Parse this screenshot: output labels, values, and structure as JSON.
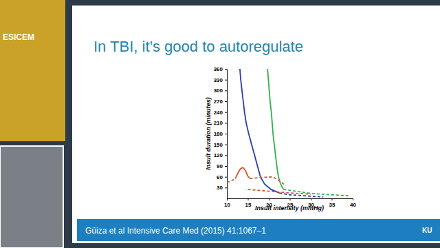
{
  "chart_data": {
    "type": "line",
    "title": "In TBI, it’s good to autoregulate",
    "annotations": [
      "Güiza et al Intensive Care Med (2015) 41:1067–1",
      "ESICEM",
      "KU"
    ],
    "x_label": "Insult intensity (mmHg)",
    "y_label": "Insult duration (minutes)",
    "xlim": [
      10,
      40
    ],
    "xticks": [
      10,
      15,
      20,
      25,
      30,
      35,
      40
    ],
    "ylim": [
      0,
      360
    ],
    "yticks": [
      30,
      60,
      90,
      120,
      150,
      180,
      210,
      240,
      270,
      300,
      330,
      360
    ],
    "grid": false,
    "series": [
      {
        "color": "#2a3bb5",
        "line_style": "solid",
        "x": [
          13.1,
          13.3,
          13.6,
          13.9,
          14.2,
          14.6,
          15.2,
          15.9,
          16.6,
          17.3,
          18,
          19,
          20.5,
          22.5
        ],
        "values": [
          360,
          330,
          300,
          270,
          240,
          210,
          180,
          150,
          120,
          90,
          60,
          40,
          25,
          15
        ]
      },
      {
        "color": "#2a3bb5",
        "line_style": "dashed",
        "x": [
          22.5,
          25,
          30,
          33
        ],
        "values": [
          15,
          10,
          6,
          4
        ]
      },
      {
        "color": "#2fb34a",
        "line_style": "solid",
        "x": [
          19.7,
          19.9,
          20.1,
          20.3,
          20.6,
          20.8,
          21,
          21.3,
          21.6,
          21.9,
          22.3,
          22.8,
          23.5
        ],
        "values": [
          360,
          330,
          300,
          270,
          240,
          210,
          180,
          150,
          120,
          90,
          60,
          40,
          25
        ]
      },
      {
        "color": "#2fb34a",
        "line_style": "dashed",
        "x": [
          23.5,
          30,
          35,
          39.5
        ],
        "values": [
          25,
          14,
          10,
          7
        ]
      },
      {
        "color": "#d9542c",
        "line_style": "solid",
        "x": [
          12,
          12.6,
          13.2,
          13.8,
          14.4,
          15,
          15.5
        ],
        "values": [
          55,
          70,
          82,
          86,
          78,
          62,
          55
        ]
      },
      {
        "color": "#d9542c",
        "line_style": "dashed",
        "x": [
          10,
          11,
          12
        ],
        "values": [
          45,
          48,
          55
        ]
      },
      {
        "color": "#d9542c",
        "line_style": "dashed",
        "x": [
          15.5,
          18,
          21,
          23,
          24
        ],
        "values": [
          55,
          58,
          60,
          45,
          35
        ]
      },
      {
        "color": "#d9542c",
        "line_style": "dashed",
        "x": [
          15,
          20,
          25,
          30
        ],
        "values": [
          25,
          20,
          15,
          12
        ]
      }
    ]
  }
}
